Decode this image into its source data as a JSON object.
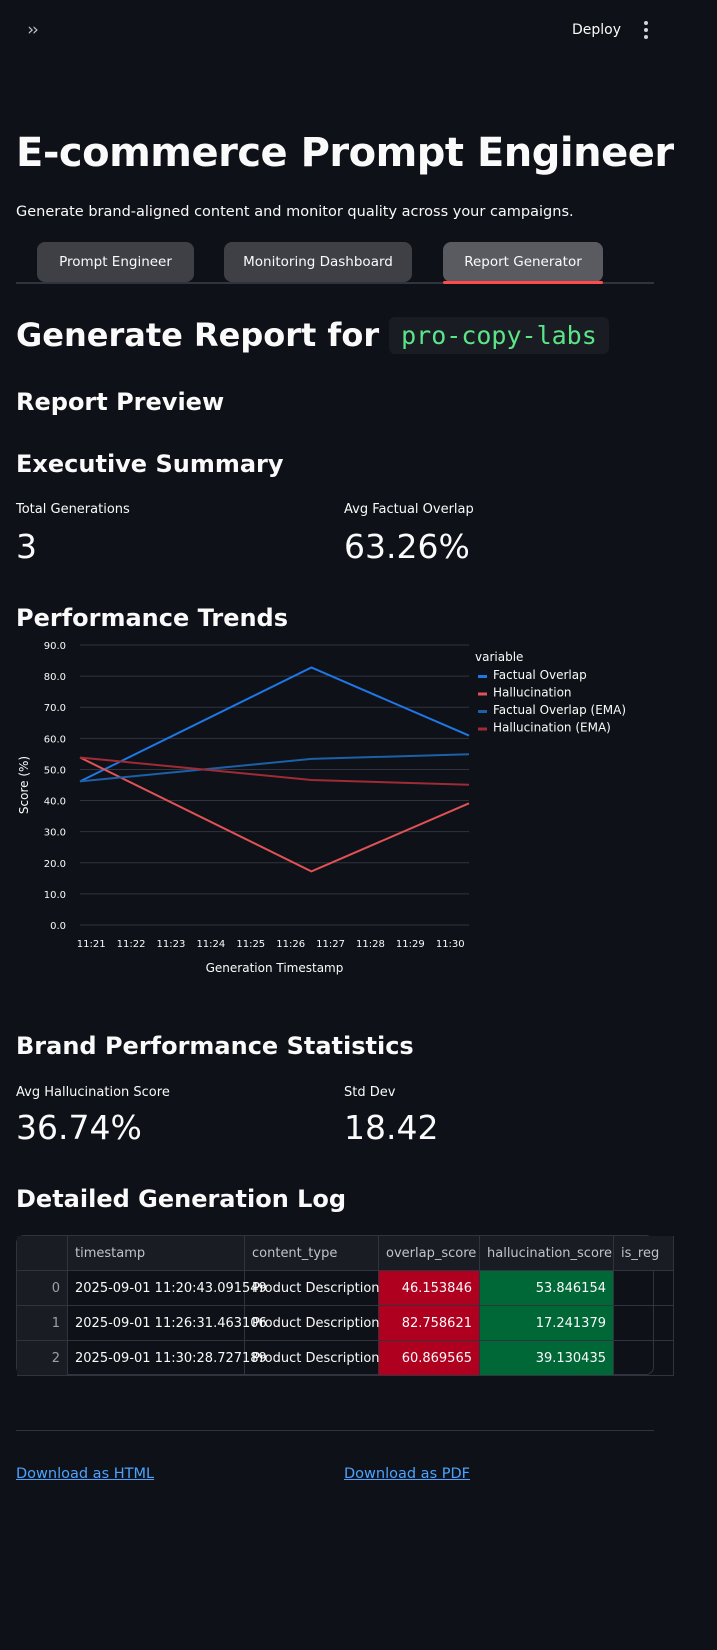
{
  "header": {
    "deploy_label": "Deploy"
  },
  "title": "E-commerce Prompt Engineer",
  "subtitle": "Generate brand-aligned content and monitor quality across your campaigns.",
  "tabs": [
    {
      "label": "Prompt Engineer"
    },
    {
      "label": "Monitoring Dashboard"
    },
    {
      "label": "Report Generator"
    }
  ],
  "report": {
    "heading_prefix": "Generate Report for",
    "brand": "pro-copy-labs",
    "preview_heading": "Report Preview",
    "executive_summary_heading": "Executive Summary",
    "metrics": [
      {
        "label": "Total Generations",
        "value": "3"
      },
      {
        "label": "Avg Factual Overlap",
        "value": "63.26%"
      }
    ],
    "trends_heading": "Performance Trends",
    "brand_stats_heading": "Brand Performance Statistics",
    "brand_metrics": [
      {
        "label": "Avg Hallucination Score",
        "value": "36.74%"
      },
      {
        "label": "Std Dev",
        "value": "18.42"
      }
    ],
    "log_heading": "Detailed Generation Log",
    "download_html": "Download as HTML",
    "download_pdf": "Download as PDF"
  },
  "table": {
    "columns": [
      "timestamp",
      "content_type",
      "overlap_score",
      "hallucination_score",
      "is_reg"
    ],
    "rows": [
      {
        "index": "0",
        "timestamp": "2025-09-01 11:20:43.091549",
        "content_type": "Product Description",
        "overlap_score": "46.153846",
        "hallucination_score": "53.846154"
      },
      {
        "index": "1",
        "timestamp": "2025-09-01 11:26:31.463106",
        "content_type": "Product Description",
        "overlap_score": "82.758621",
        "hallucination_score": "17.241379"
      },
      {
        "index": "2",
        "timestamp": "2025-09-01 11:30:28.727189",
        "content_type": "Product Description",
        "overlap_score": "60.869565",
        "hallucination_score": "39.130435"
      }
    ]
  },
  "chart_data": {
    "type": "line",
    "xlabel": "Generation Timestamp",
    "ylabel": "Score (%)",
    "legend_title": "variable",
    "legend_position": "right",
    "x_tick_labels": [
      "11:21",
      "11:22",
      "11:23",
      "11:24",
      "11:25",
      "11:26",
      "11:27",
      "11:28",
      "11:29",
      "11:30"
    ],
    "y_tick_labels": [
      "0.0",
      "10.0",
      "20.0",
      "30.0",
      "40.0",
      "50.0",
      "60.0",
      "70.0",
      "80.0",
      "90.0"
    ],
    "ylim": [
      0,
      90
    ],
    "x_minutes_range": [
      20.72,
      30.47
    ],
    "grid": true,
    "series": [
      {
        "name": "Factual Overlap",
        "color": "#1f77e6",
        "x": [
          20.72,
          26.52,
          30.47
        ],
        "values": [
          46.15,
          82.76,
          60.87
        ]
      },
      {
        "name": "Hallucination",
        "color": "#e05255",
        "x": [
          20.72,
          26.52,
          30.47
        ],
        "values": [
          53.85,
          17.24,
          39.13
        ]
      },
      {
        "name": "Factual Overlap (EMA)",
        "color": "#1d5fa8",
        "x": [
          20.72,
          26.52,
          30.47
        ],
        "values": [
          46.15,
          53.4,
          54.9
        ]
      },
      {
        "name": "Hallucination (EMA)",
        "color": "#9e2b35",
        "x": [
          20.72,
          26.52,
          30.47
        ],
        "values": [
          53.85,
          46.6,
          45.1
        ]
      }
    ]
  }
}
